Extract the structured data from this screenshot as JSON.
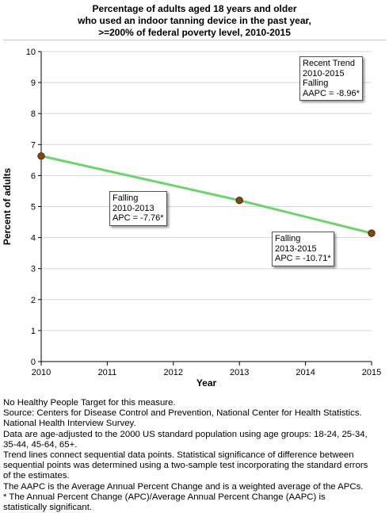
{
  "title_lines": [
    "Percentage of adults aged 18 years and older",
    "who used an indoor tanning device in the past year,",
    ">=200% of federal poverty level,  2010-2015"
  ],
  "chart_data": {
    "type": "line",
    "title": "Percentage of adults aged 18 years and older who used an indoor tanning device in the past year, >=200% of federal poverty level,  2010-2015",
    "xlabel": "Year",
    "ylabel": "Percent of adults",
    "xlim": [
      2010,
      2015
    ],
    "ylim": [
      0,
      10
    ],
    "x_ticks": [
      "2010",
      "2011",
      "2012",
      "2013",
      "2014",
      "2015"
    ],
    "y_ticks": [
      "0",
      "1",
      "2",
      "3",
      "4",
      "5",
      "6",
      "7",
      "8",
      "9",
      "10"
    ],
    "grid": "horizontal",
    "points": [
      {
        "x": 2010,
        "y": 6.63
      },
      {
        "x": 2013,
        "y": 5.2
      },
      {
        "x": 2015,
        "y": 4.14
      }
    ],
    "trend_segments": [
      {
        "from": 2010,
        "to": 2013
      },
      {
        "from": 2013,
        "to": 2015
      }
    ],
    "colors": {
      "line": "#6ed36e",
      "point": "#7a4a12",
      "grid": "#d8d8d8"
    }
  },
  "annotations": {
    "recent": [
      "Recent Trend",
      "2010-2015",
      "Falling",
      "AAPC = -8.96*"
    ],
    "seg1": [
      "Falling",
      "2010-2013",
      "APC = -7.76*"
    ],
    "seg2": [
      "Falling",
      "2013-2015",
      "APC = -10.71*"
    ]
  },
  "footnotes": [
    "No Healthy People Target for this measure.",
    "Source: Centers for Disease Control and Prevention, National Center for Health Statistics.",
    "National Health Interview Survey.",
    "Data are age-adjusted to the 2000 US standard population using age groups: 18-24, 25-34,",
    "35-44, 45-64, 65+.",
    "Trend lines connect sequential data points. Statistical significance of difference between",
    "sequential points was determined using a two-sample test incorporating the standard errors",
    "of the estimates.",
    "The AAPC is the Average Annual Percent Change and is a weighted average of the APCs.",
    "* The Annual Percent Change (APC)/Average Annual Percent Change (AAPC) is",
    "statistically significant."
  ]
}
